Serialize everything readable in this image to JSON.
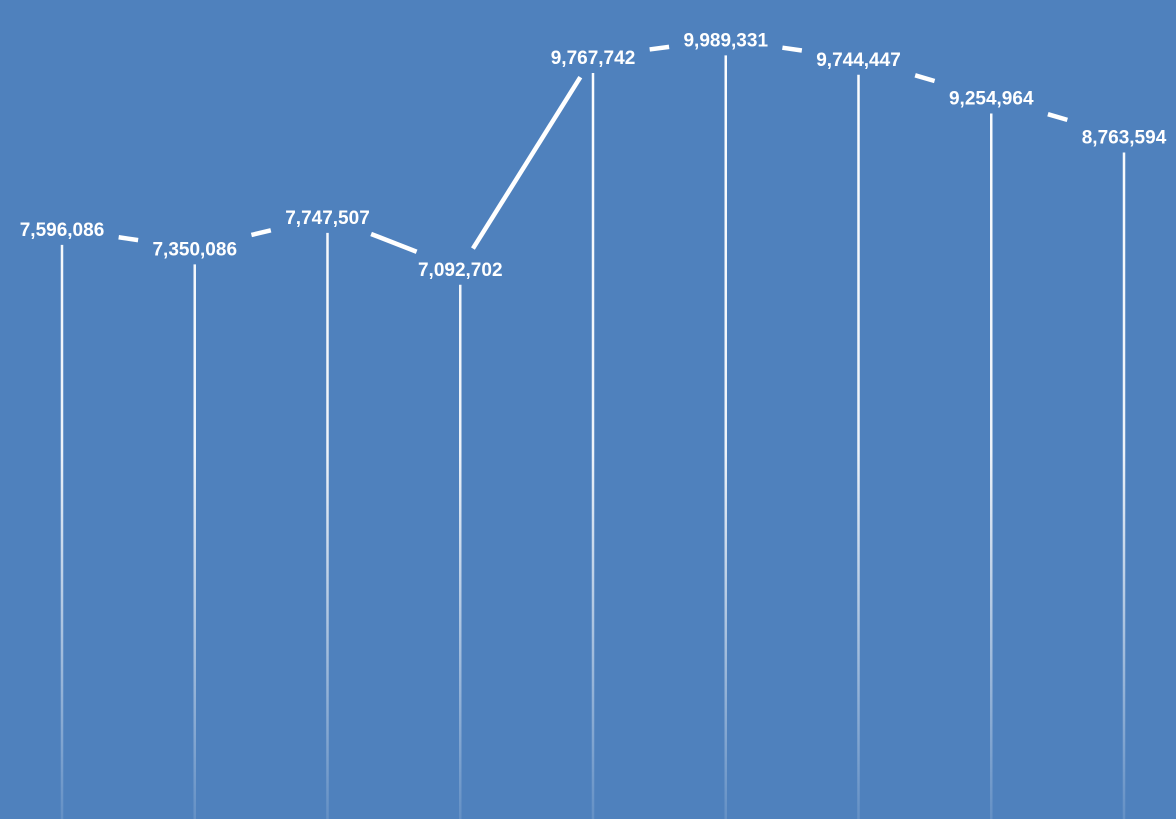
{
  "chart_data": {
    "type": "line",
    "title": "",
    "xlabel": "",
    "ylabel": "",
    "point_count": 9,
    "values": [
      7596086,
      7350086,
      7747507,
      7092702,
      9767742,
      9989331,
      9744447,
      9254964,
      8763594
    ],
    "labels": [
      "7,596,086",
      "7,350,086",
      "7,747,507",
      "7,092,702",
      "9,767,742",
      "9,989,331",
      "9,744,447",
      "9,254,964",
      "8,763,594"
    ],
    "legend": "none",
    "gridlines": false,
    "drop_lines": true,
    "data_labels": true,
    "colors": {
      "background": "#4f81bd",
      "line": "#ffffff",
      "label": "#ffffff"
    }
  }
}
